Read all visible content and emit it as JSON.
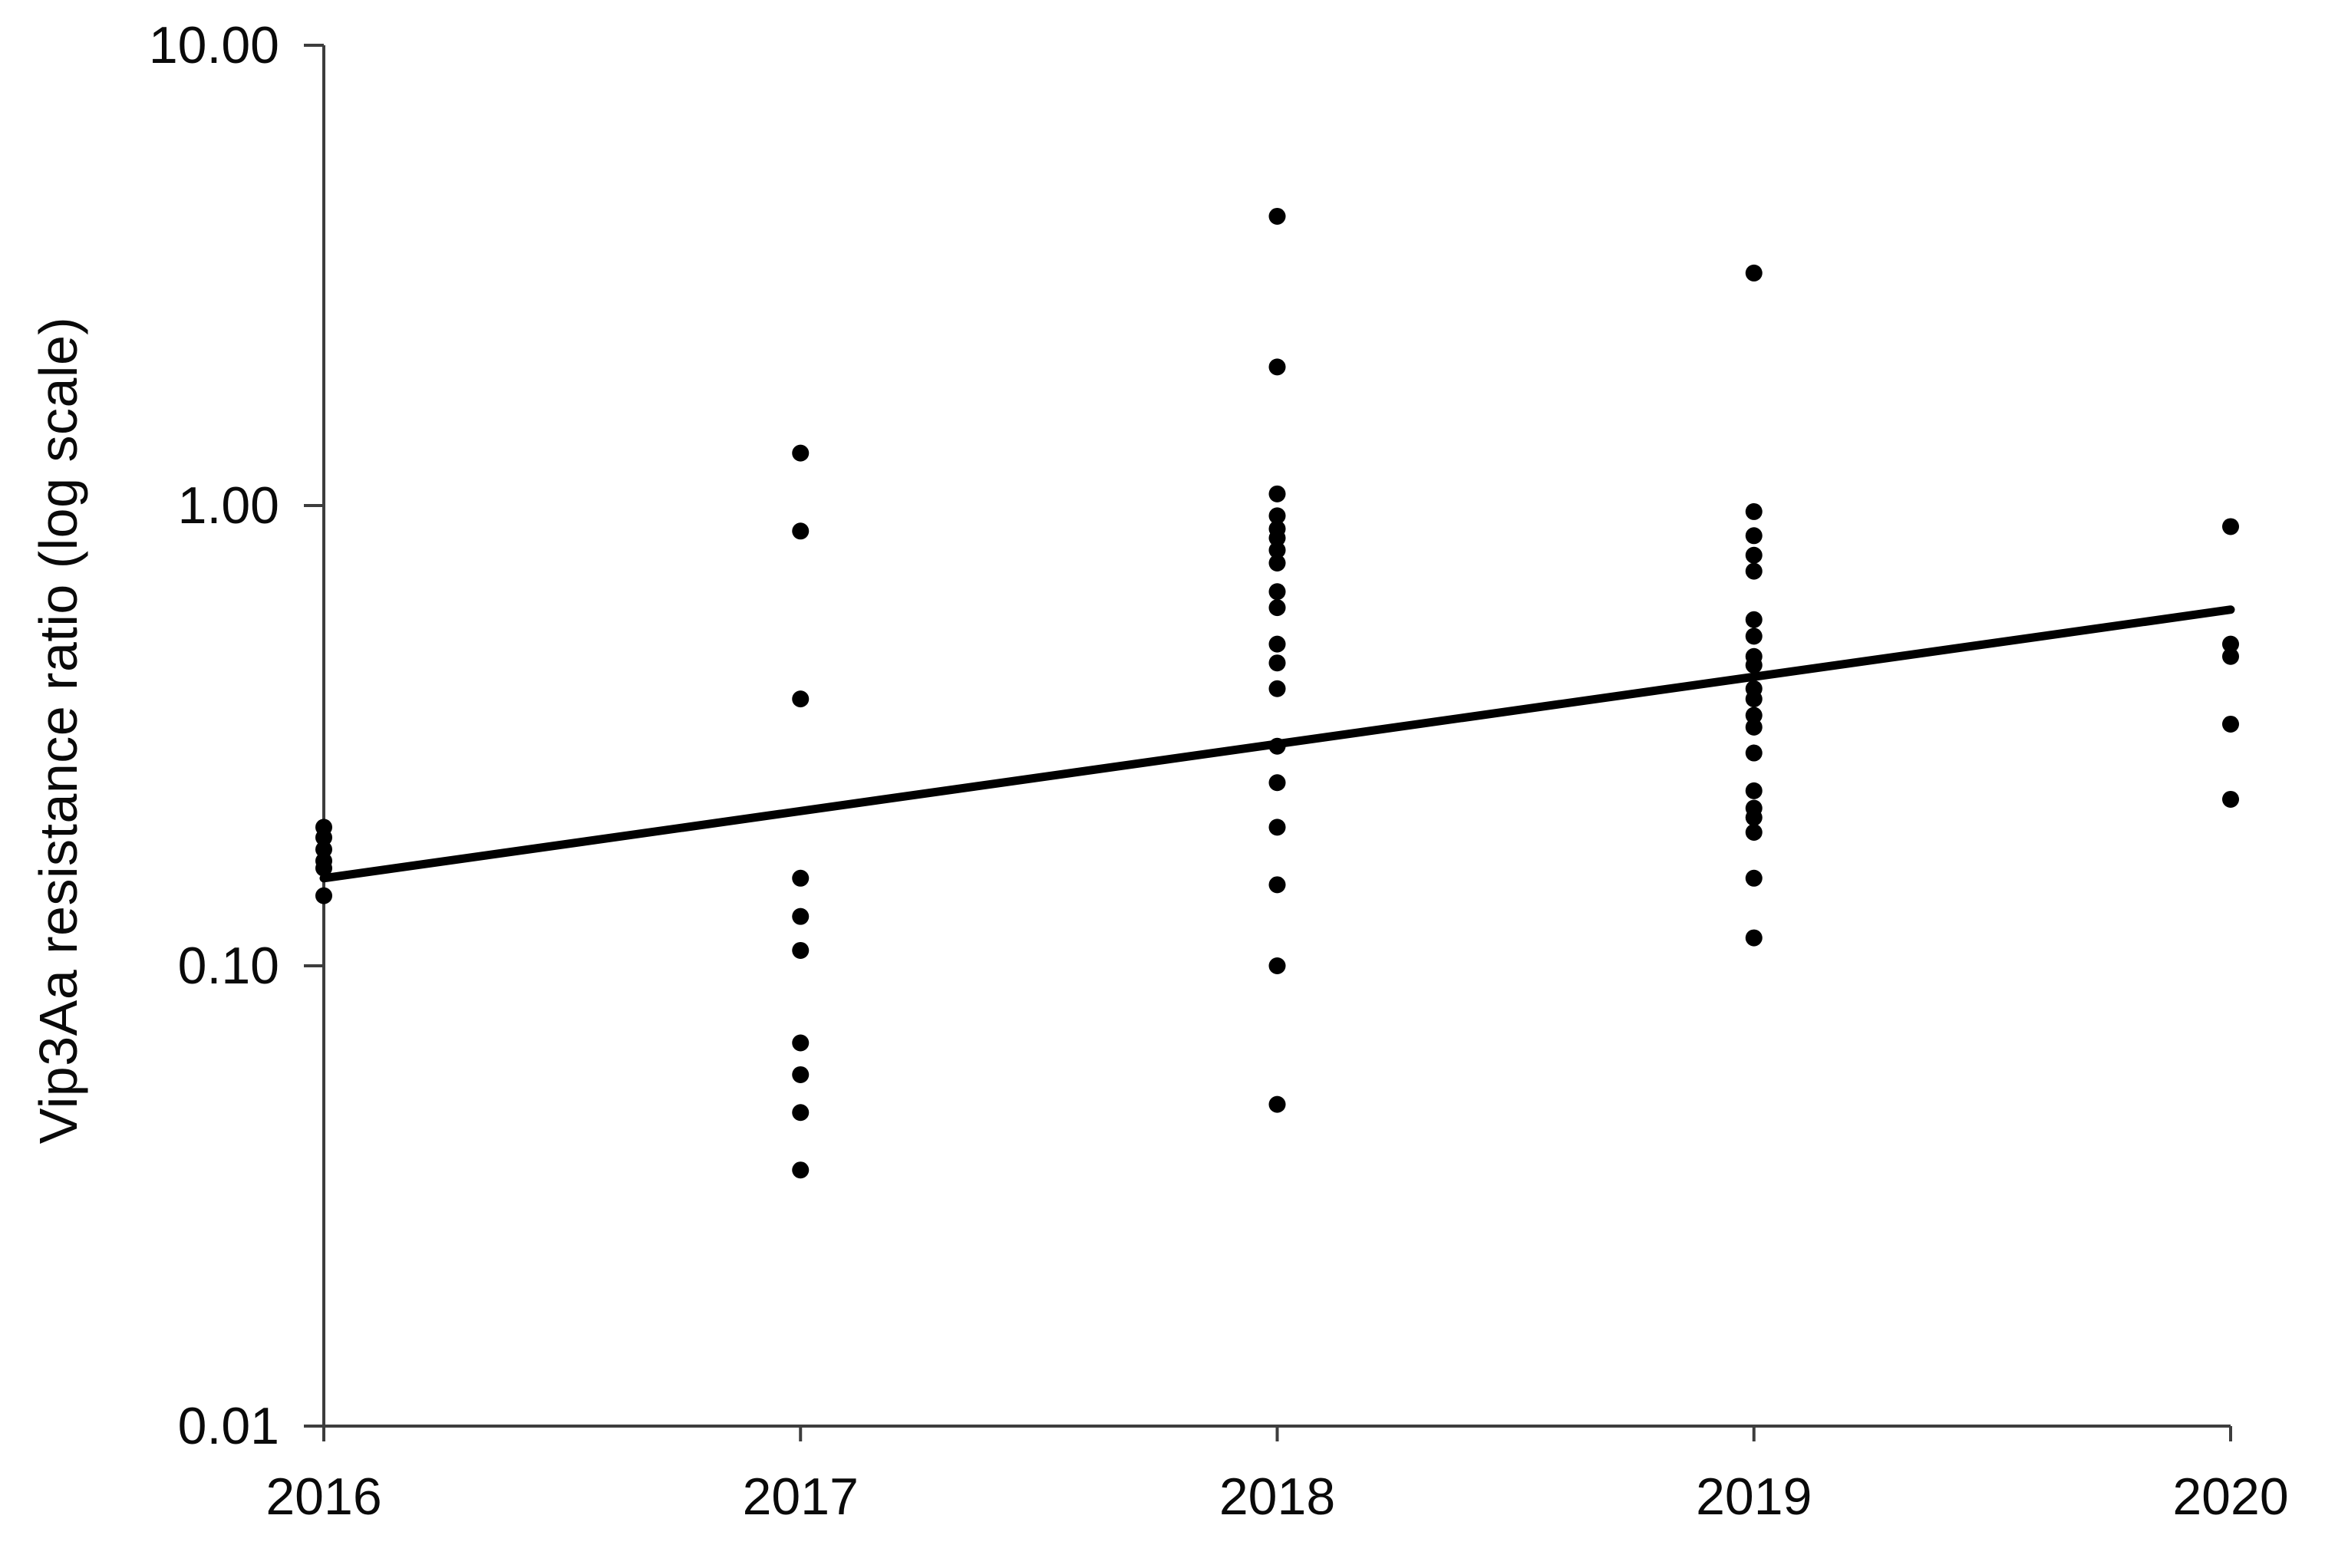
{
  "figure": {
    "ylabel": "Vip3Aa resistance ratio (log scale)",
    "background_color": "#ffffff",
    "axis_color": "#3d3d3d",
    "dot_color": "#000000",
    "trend_color": "#000000"
  },
  "chart_data": {
    "type": "scatter",
    "title": "",
    "xlabel": "",
    "ylabel": "Vip3Aa resistance ratio (log scale)",
    "y_scale": "log",
    "ylim": [
      0.01,
      10.0
    ],
    "xlim": [
      2016,
      2020
    ],
    "grid": "off",
    "legend": "none",
    "y_tick_labels": [
      "10.00",
      "1.00",
      "0.10",
      "0.01"
    ],
    "y_tick_values": [
      10.0,
      1.0,
      0.1,
      0.01
    ],
    "x_tick_labels": [
      "2016",
      "2017",
      "2018",
      "2019",
      "2020"
    ],
    "x_tick_values": [
      2016,
      2017,
      2018,
      2019,
      2020
    ],
    "series": [
      {
        "year": 2016,
        "values": [
          0.2,
          0.19,
          0.179,
          0.169,
          0.163,
          0.142
        ]
      },
      {
        "year": 2017,
        "values": [
          1.3,
          0.88,
          0.38,
          0.155,
          0.128,
          0.108,
          0.068,
          0.058,
          0.048,
          0.036
        ]
      },
      {
        "year": 2018,
        "values": [
          4.25,
          2.0,
          1.06,
          0.95,
          0.89,
          0.85,
          0.8,
          0.75,
          0.65,
          0.6,
          0.5,
          0.455,
          0.4,
          0.3,
          0.25,
          0.2,
          0.15,
          0.1,
          0.05
        ]
      },
      {
        "year": 2019,
        "values": [
          3.2,
          0.97,
          0.86,
          0.78,
          0.72,
          0.565,
          0.52,
          0.47,
          0.45,
          0.4,
          0.38,
          0.35,
          0.33,
          0.29,
          0.24,
          0.22,
          0.21,
          0.195,
          0.155,
          0.115
        ]
      },
      {
        "year": 2020,
        "values": [
          0.9,
          0.5,
          0.47,
          0.335,
          0.23
        ]
      }
    ],
    "trend_line": {
      "description": "regression line, straight on log scale",
      "x": [
        2016,
        2020
      ],
      "y": [
        0.155,
        0.594
      ]
    }
  }
}
